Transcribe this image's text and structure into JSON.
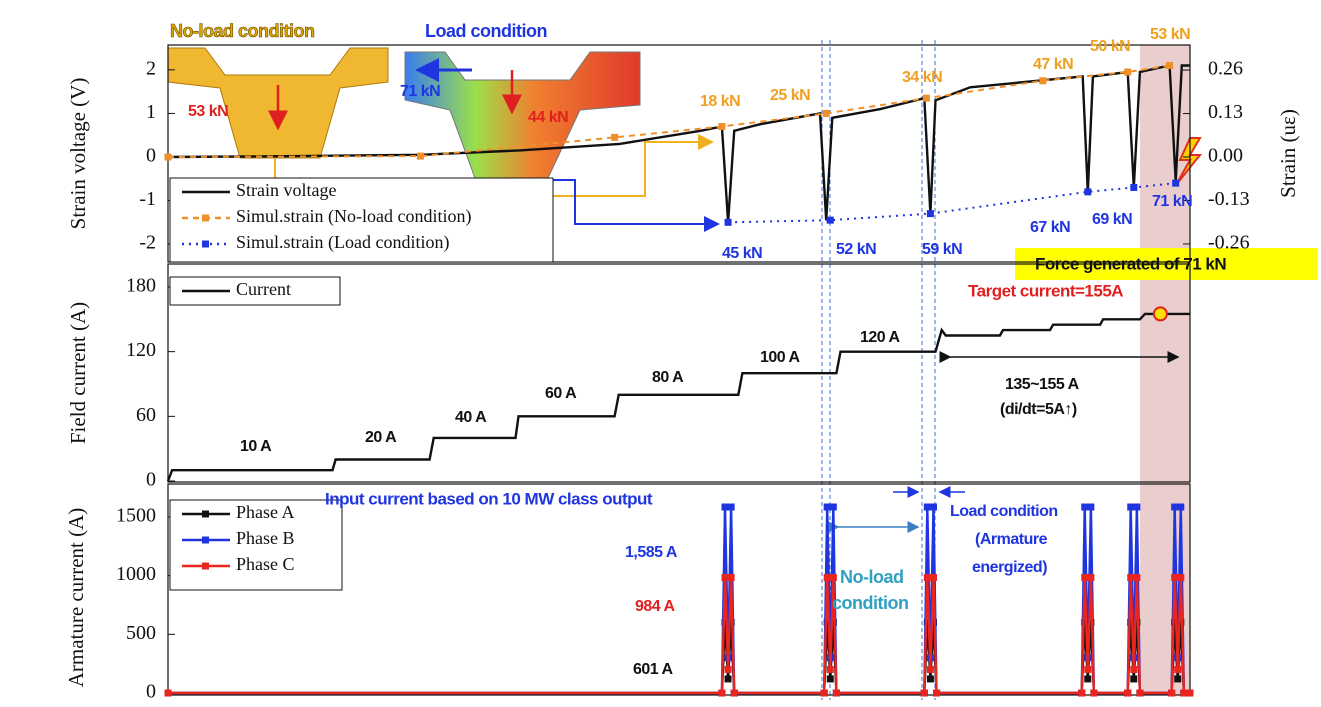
{
  "chart_data": [
    {
      "type": "line",
      "ylabel": "Strain voltage (V)",
      "y2label": "Strain (uε)",
      "xlim": [
        0,
        100
      ],
      "ylim": [
        -2.41,
        2.57
      ],
      "yticks": [
        -2,
        -1,
        0,
        1,
        2
      ],
      "y2lim": [
        -0.314,
        0.335
      ],
      "y2ticks": [
        0.26,
        0.13,
        {
          "value": 0,
          "label": "0.00"
        },
        -0.13,
        -0.26
      ],
      "legend": "lower left",
      "series": [
        {
          "name": "Strain voltage",
          "color": "#111111",
          "dash": "solid",
          "marker": "none",
          "x": [
            0,
            12.9,
            24.7,
            34.4,
            44.2,
            52.1,
            54.2,
            54.8,
            55.4,
            57.9,
            63.8,
            64.4,
            65.0,
            69.7,
            74.0,
            74.6,
            75.1,
            78.5,
            89.5,
            90.0,
            90.5,
            93.9,
            94.5,
            95.1,
            98.0,
            98.6,
            99.2,
            100
          ],
          "values": [
            0,
            0.02,
            0.05,
            0.15,
            0.3,
            0.6,
            0.7,
            -1.5,
            0.6,
            0.75,
            1.0,
            -1.45,
            0.9,
            1.1,
            1.35,
            -1.3,
            1.3,
            1.6,
            1.85,
            -0.8,
            1.85,
            1.95,
            -0.7,
            1.95,
            2.1,
            -0.55,
            2.1,
            2.1
          ]
        },
        {
          "name": "Simul.strain (No-load condition)",
          "color": "#f0902a",
          "dash": "dashed",
          "marker": "square",
          "x": [
            0,
            24.7,
            43.7,
            54.2,
            64.4,
            74.2,
            85.6,
            93.9,
            98.0
          ],
          "values": [
            0,
            0.02,
            0.45,
            0.7,
            1.0,
            1.35,
            1.75,
            1.95,
            2.1
          ]
        },
        {
          "name": "Simul.strain (Load condition)",
          "color": "#1f35e0",
          "dash": "dotted",
          "marker": "square",
          "x": [
            54.8,
            64.8,
            74.6,
            90.0,
            94.5,
            98.6
          ],
          "values": [
            -1.5,
            -1.45,
            -1.3,
            -0.8,
            -0.7,
            -0.6
          ]
        }
      ],
      "annotations": [
        {
          "text": "No-load condition"
        },
        {
          "text": "Load condition"
        },
        {
          "text": "53 kN"
        },
        {
          "text": "71 kN"
        },
        {
          "text": "44 kN"
        },
        {
          "text": "18 kN"
        },
        {
          "text": "25 kN"
        },
        {
          "text": "34 kN"
        },
        {
          "text": "47 kN"
        },
        {
          "text": "50 kN"
        },
        {
          "text": "53 kN"
        },
        {
          "text": "45 kN"
        },
        {
          "text": "52 kN"
        },
        {
          "text": "59 kN"
        },
        {
          "text": "67 kN"
        },
        {
          "text": "69 kN"
        },
        {
          "text": "71 kN"
        },
        {
          "text": "Force generated of 71 kN"
        }
      ]
    },
    {
      "type": "line",
      "ylabel": "Field current (A)",
      "xlim": [
        0,
        100
      ],
      "ylim": [
        -0.9,
        201.3
      ],
      "yticks": [
        0,
        60,
        120,
        180
      ],
      "legend": "upper left",
      "series": [
        {
          "name": "Current",
          "color": "#111111",
          "dash": "solid",
          "marker": "none",
          "x": [
            0,
            0.4,
            16.1,
            16.4,
            25.6,
            26.0,
            34.0,
            34.3,
            43.7,
            44.1,
            55.8,
            56.2,
            65.4,
            65.8,
            75.1,
            75.7,
            76.1,
            81.4,
            81.7,
            86.3,
            86.6,
            91.2,
            91.5,
            95.1,
            95.6,
            100
          ],
          "values": [
            0,
            10,
            10,
            20,
            20,
            40,
            40,
            60,
            60,
            80,
            80,
            100,
            100,
            120,
            120,
            140,
            135,
            135,
            140,
            140,
            145,
            145,
            150,
            150,
            155,
            155
          ]
        }
      ],
      "target": {
        "x": 97.1,
        "value": 155,
        "color": "#ffe000"
      },
      "annotations": [
        {
          "text": "10 A"
        },
        {
          "text": "20 A"
        },
        {
          "text": "40 A"
        },
        {
          "text": "60 A"
        },
        {
          "text": "80 A"
        },
        {
          "text": "100 A"
        },
        {
          "text": "120 A"
        },
        {
          "text": "Target current=155A"
        },
        {
          "text": "135~155 A"
        },
        {
          "text": "(di/dt=5A↑)"
        }
      ]
    },
    {
      "type": "line",
      "ylabel": "Armature current (A)",
      "xlim": [
        0,
        100
      ],
      "ylim": [
        -17,
        1781
      ],
      "yticks": [
        0,
        500,
        1000,
        1500
      ],
      "legend": "upper left",
      "series": [
        {
          "name": "Phase A",
          "color": "#111111",
          "dash": "solid",
          "marker": "square",
          "x": [
            0,
            54.2,
            54.5,
            54.8,
            55.1,
            55.4,
            64.2,
            64.5,
            64.8,
            65.1,
            65.4,
            74.0,
            74.3,
            74.6,
            74.9,
            75.2,
            89.4,
            89.7,
            90.0,
            90.3,
            90.6,
            93.9,
            94.2,
            94.5,
            94.8,
            95.1,
            98.2,
            98.5,
            98.8,
            99.1,
            99.4,
            100
          ],
          "values": [
            0,
            0,
            601,
            120,
            601,
            0,
            0,
            601,
            120,
            601,
            0,
            0,
            601,
            120,
            601,
            0,
            0,
            601,
            120,
            601,
            0,
            0,
            601,
            120,
            601,
            0,
            0,
            601,
            120,
            601,
            0,
            0
          ]
        },
        {
          "name": "Phase B",
          "color": "#1f35e0",
          "dash": "solid",
          "marker": "square",
          "x": [
            0,
            54.2,
            54.5,
            54.8,
            55.1,
            55.4,
            64.2,
            64.5,
            64.8,
            65.1,
            65.4,
            74.0,
            74.3,
            74.6,
            74.9,
            75.2,
            89.4,
            89.7,
            90.0,
            90.3,
            90.6,
            93.9,
            94.2,
            94.5,
            94.8,
            95.1,
            98.2,
            98.5,
            98.8,
            99.1,
            99.4,
            100
          ],
          "values": [
            0,
            0,
            1585,
            300,
            1585,
            0,
            0,
            1585,
            300,
            1585,
            0,
            0,
            1585,
            300,
            1585,
            0,
            0,
            1585,
            300,
            1585,
            0,
            0,
            1585,
            300,
            1585,
            0,
            0,
            1585,
            300,
            1585,
            0,
            0
          ]
        },
        {
          "name": "Phase C",
          "color": "#e8251f",
          "dash": "solid",
          "marker": "square",
          "x": [
            0,
            54.2,
            54.5,
            54.8,
            55.1,
            55.4,
            64.2,
            64.5,
            64.8,
            65.1,
            65.4,
            74.0,
            74.3,
            74.6,
            74.9,
            75.2,
            89.4,
            89.7,
            90.0,
            90.3,
            90.6,
            93.9,
            94.2,
            94.5,
            94.8,
            95.1,
            98.2,
            98.5,
            98.8,
            99.1,
            99.4,
            100
          ],
          "values": [
            0,
            0,
            984,
            200,
            984,
            0,
            0,
            984,
            200,
            984,
            0,
            0,
            984,
            200,
            984,
            0,
            0,
            984,
            200,
            984,
            0,
            0,
            984,
            200,
            984,
            0,
            0,
            984,
            200,
            984,
            0,
            0
          ]
        }
      ],
      "annotations": [
        {
          "text": "Input current based on 10 MW class output"
        },
        {
          "text": "1,585 A"
        },
        {
          "text": "984 A"
        },
        {
          "text": "601 A"
        },
        {
          "text": "No-load"
        },
        {
          "text": "condition"
        },
        {
          "text": "Load condition"
        },
        {
          "text": "(Armature"
        },
        {
          "text": "energized)"
        }
      ]
    }
  ]
}
